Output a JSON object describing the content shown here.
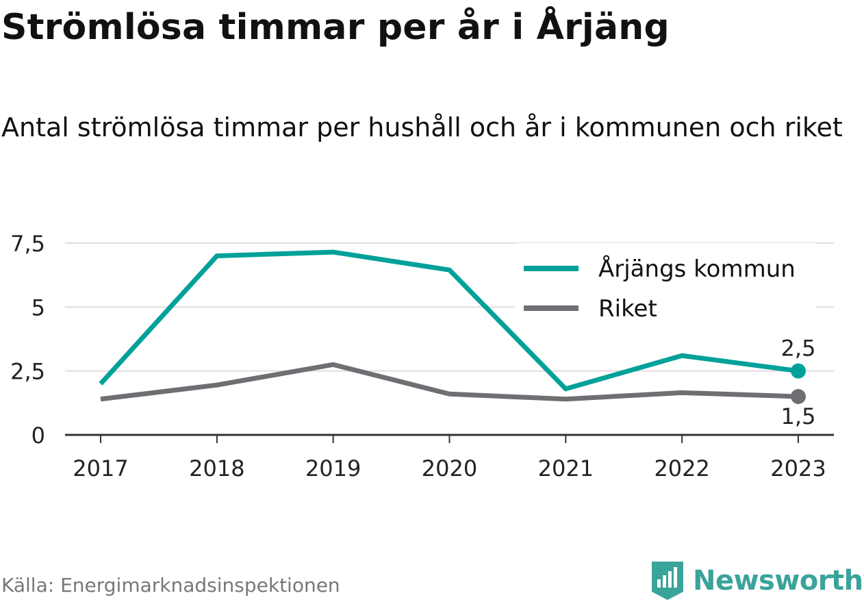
{
  "header": {
    "title": "Strömlösa timmar per år i Årjäng",
    "subtitle": "Antal strömlösa timmar per hushåll och år i kommunen och riket"
  },
  "footer": {
    "source": "Källa: Energimarknadsinspektionen",
    "brand": "Newsworthy",
    "brand_icon": "newsworthy-logo-icon"
  },
  "colors": {
    "series_1": "#00a19a",
    "series_2": "#6e6e73",
    "grid": "#dddddd",
    "axis": "#333333",
    "brand": "#3aa39a"
  },
  "chart_data": {
    "type": "line",
    "x": [
      "2017",
      "2018",
      "2019",
      "2020",
      "2021",
      "2022",
      "2023"
    ],
    "series": [
      {
        "name": "Årjängs kommun",
        "values": [
          2.0,
          7.0,
          7.15,
          6.45,
          1.8,
          3.1,
          2.5
        ]
      },
      {
        "name": "Riket",
        "values": [
          1.4,
          1.95,
          2.75,
          1.6,
          1.4,
          1.65,
          1.5
        ]
      }
    ],
    "ylim": [
      0,
      7.5
    ],
    "yticks": [
      {
        "value": 0,
        "label": "0"
      },
      {
        "value": 2.5,
        "label": "2,5"
      },
      {
        "value": 5,
        "label": "5"
      },
      {
        "value": 7.5,
        "label": "7,5"
      }
    ],
    "end_labels": [
      "2,5",
      "1,5"
    ],
    "grid": true,
    "legend_position": "top-right"
  }
}
